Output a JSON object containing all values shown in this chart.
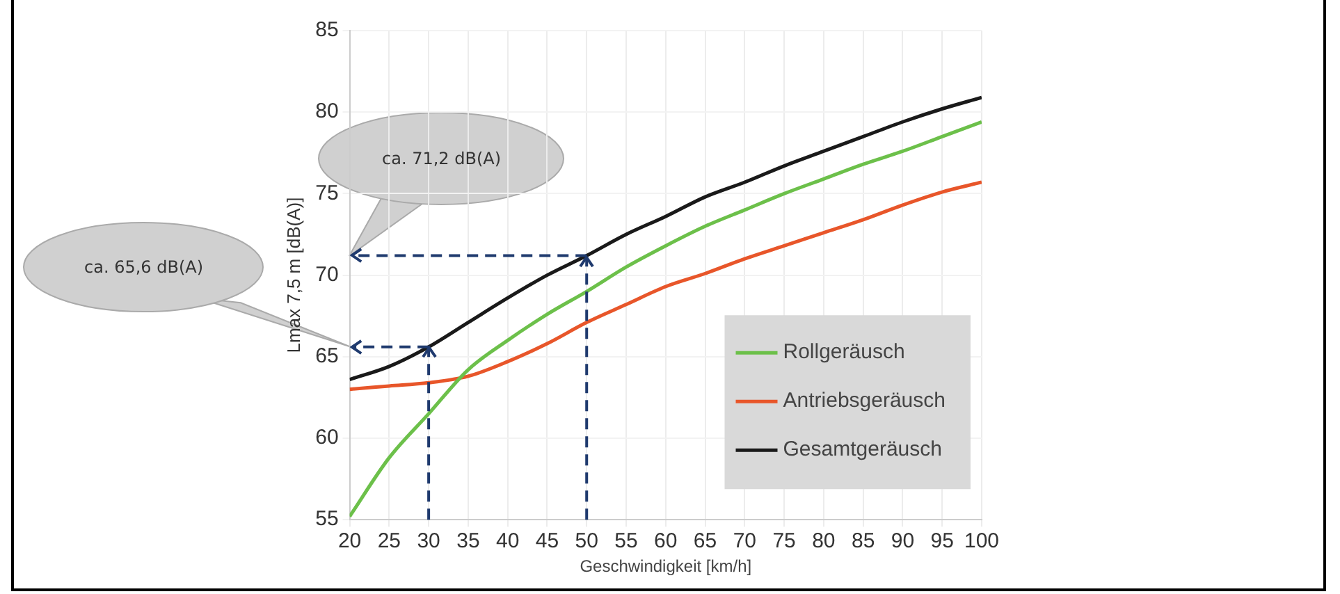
{
  "chart_data": {
    "type": "line",
    "xlabel": "Geschwindigkeit [km/h]",
    "ylabel": "Lmax 7,5 m [dB(A)]",
    "x": [
      20,
      25,
      30,
      35,
      40,
      45,
      50,
      55,
      60,
      65,
      70,
      75,
      80,
      85,
      90,
      95,
      100
    ],
    "xlim": [
      20,
      100
    ],
    "xticks": [
      20,
      25,
      30,
      35,
      40,
      45,
      50,
      55,
      60,
      65,
      70,
      75,
      80,
      85,
      90,
      95,
      100
    ],
    "ylim": [
      55,
      85
    ],
    "yticks": [
      55,
      60,
      65,
      70,
      75,
      80,
      85
    ],
    "series": [
      {
        "name": "Rollgeräusch",
        "color": "#6cc04a",
        "values": [
          55.2,
          58.8,
          61.5,
          64.2,
          66.0,
          67.6,
          69.0,
          70.5,
          71.8,
          73.0,
          74.0,
          75.0,
          75.9,
          76.8,
          77.6,
          78.5,
          79.4
        ]
      },
      {
        "name": "Antriebsgeräusch",
        "color": "#e8562a",
        "values": [
          63.0,
          63.2,
          63.4,
          63.8,
          64.7,
          65.8,
          67.1,
          68.2,
          69.3,
          70.1,
          71.0,
          71.8,
          72.6,
          73.4,
          74.3,
          75.1,
          75.7
        ]
      },
      {
        "name": "Gesamtgeräusch",
        "color": "#1a1a1a",
        "values": [
          63.6,
          64.4,
          65.6,
          67.1,
          68.6,
          70.0,
          71.2,
          72.5,
          73.6,
          74.8,
          75.7,
          76.7,
          77.6,
          78.5,
          79.4,
          80.2,
          80.9
        ]
      }
    ],
    "annotations": [
      "ca. 71,2 dB(A)",
      {
        "text": "ca. 65,6 dB(A)",
        "x": 20,
        "y": 65.6
      }
    ],
    "ref_lines": [
      {
        "axis": "x",
        "value": 50,
        "color": "#1f3a6e",
        "line_style": "dashed"
      },
      {
        "axis": "y",
        "value": 71.2,
        "color": "#1f3a6e",
        "line_style": "dashed"
      },
      {
        "axis": "x",
        "value": 30,
        "color": "#1f3a6e",
        "line_style": "dashed"
      },
      {
        "axis": "y",
        "value": 65.6,
        "color": "#1f3a6e",
        "line_style": "dashed"
      }
    ],
    "grid": true,
    "legend": "bottom right",
    "marker": "none",
    "line_style": "solid"
  }
}
